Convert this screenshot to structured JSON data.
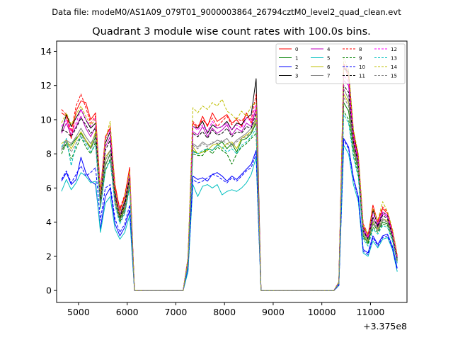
{
  "suptitle": "Data file: modeM0/AS1A09_079T01_9000003864_26794cztM0_level2_quad_clean.evt",
  "chart_data": {
    "type": "line",
    "title": "Quadrant 3 module wise count rates with 100.0s bins.",
    "xlabel": "",
    "ylabel": "",
    "x_offset_label": "+3.375e8",
    "xlim": [
      4550,
      11750
    ],
    "ylim": [
      -0.7,
      14.6
    ],
    "xticks": [
      5000,
      6000,
      7000,
      8000,
      9000,
      10000,
      11000
    ],
    "xtick_labels": [
      "5000",
      "6000",
      "7000",
      "8000",
      "9000",
      "10000",
      "11000"
    ],
    "yticks": [
      0,
      2,
      4,
      6,
      8,
      10,
      12,
      14
    ],
    "ytick_labels": [
      "0",
      "2",
      "4",
      "6",
      "8",
      "10",
      "12",
      "14"
    ],
    "grid": false,
    "legend_position": "top-right",
    "legend_columns": 4,
    "segments": [
      {
        "x_start": 4650,
        "x_step": 100,
        "count": 18
      },
      {
        "x_start": 7150,
        "x_step": 100,
        "count": 18
      },
      {
        "x_start": 10150,
        "x_step": 100,
        "count": 15
      }
    ],
    "zero_segments": [
      [
        6350,
        7150
      ],
      [
        9050,
        10050
      ]
    ],
    "series": [
      {
        "name": "0",
        "color": "#ff0000",
        "dash": "solid",
        "values": [
          10.4,
          10.2,
          8.9,
          10.5,
          11.1,
          11.0,
          10.0,
          10.4,
          5.8,
          9.0,
          9.5,
          6.2,
          4.7,
          5.5,
          7.2,
          0,
          0,
          0,
          0,
          1.8,
          9.8,
          9.5,
          10.2,
          9.6,
          10.4,
          9.9,
          10.1,
          10.3,
          9.8,
          10.0,
          9.6,
          10.4,
          9.8,
          10.6,
          0,
          0,
          0,
          0,
          0.5,
          13.2,
          12.5,
          9.0,
          7.8,
          3.8,
          3.2,
          5.0,
          4.0,
          4.8,
          4.5,
          3.5,
          2.0,
          2.3,
          2.2
        ]
      },
      {
        "name": "1",
        "color": "#008000",
        "dash": "solid",
        "values": [
          8.2,
          8.6,
          8.5,
          8.9,
          9.2,
          8.8,
          8.3,
          9.0,
          5.2,
          7.3,
          8.0,
          5.5,
          4.2,
          4.8,
          6.5,
          0,
          0,
          0,
          0,
          1.6,
          8.2,
          8.0,
          8.1,
          8.3,
          8.2,
          8.5,
          8.7,
          8.3,
          8.6,
          8.1,
          8.8,
          8.9,
          9.2,
          9.8,
          0,
          0,
          0,
          0,
          0.4,
          11.0,
          10.5,
          8.3,
          7.0,
          3.2,
          2.8,
          3.9,
          3.5,
          4.0,
          3.9,
          3.2,
          1.7,
          1.9,
          2.0
        ]
      },
      {
        "name": "2",
        "color": "#0000ff",
        "dash": "solid",
        "values": [
          6.4,
          6.9,
          6.2,
          6.5,
          7.8,
          6.9,
          6.4,
          6.2,
          3.6,
          5.5,
          6.0,
          3.9,
          3.2,
          3.7,
          4.7,
          0,
          0,
          0,
          0,
          1.2,
          6.7,
          6.5,
          6.6,
          6.4,
          6.8,
          6.9,
          6.7,
          6.4,
          6.7,
          6.5,
          6.8,
          7.1,
          7.4,
          8.2,
          0,
          0,
          0,
          0,
          0.3,
          8.9,
          8.4,
          6.6,
          5.5,
          2.4,
          2.2,
          3.2,
          2.7,
          3.2,
          3.3,
          2.6,
          1.3,
          1.4,
          1.6
        ]
      },
      {
        "name": "3",
        "color": "#000000",
        "dash": "solid",
        "values": [
          9.3,
          10.3,
          9.6,
          10.1,
          10.6,
          10.0,
          9.5,
          9.8,
          5.5,
          8.6,
          9.3,
          5.8,
          4.4,
          5.2,
          6.8,
          0,
          0,
          0,
          0,
          1.9,
          9.6,
          9.5,
          9.9,
          9.2,
          9.7,
          9.5,
          9.6,
          9.9,
          9.4,
          9.8,
          9.7,
          10.1,
          10.3,
          12.4,
          0,
          0,
          0,
          0,
          0.5,
          13.0,
          12.8,
          9.3,
          7.8,
          3.7,
          3.0,
          4.7,
          3.8,
          4.6,
          4.4,
          3.3,
          1.9,
          2.1,
          2.1
        ]
      },
      {
        "name": "4",
        "color": "#bf00bf",
        "dash": "solid",
        "values": [
          9.2,
          9.8,
          9.1,
          9.6,
          10.2,
          9.5,
          9.0,
          9.6,
          5.3,
          8.4,
          9.0,
          5.6,
          4.4,
          5.0,
          6.7,
          0,
          0,
          0,
          0,
          1.7,
          9.3,
          9.1,
          9.6,
          9.0,
          9.5,
          9.2,
          9.4,
          9.7,
          9.1,
          9.5,
          9.3,
          9.8,
          9.6,
          10.7,
          0,
          0,
          0,
          0,
          0.5,
          12.3,
          12.0,
          8.8,
          7.5,
          3.5,
          3.1,
          4.3,
          3.7,
          4.5,
          4.3,
          3.3,
          1.8,
          2.0,
          2.1
        ]
      },
      {
        "name": "5",
        "color": "#00bfbf",
        "dash": "solid",
        "values": [
          5.8,
          6.5,
          5.9,
          6.3,
          6.9,
          6.7,
          6.3,
          6.4,
          3.4,
          5.1,
          5.5,
          3.6,
          3.0,
          3.4,
          4.4,
          0,
          0,
          0,
          0,
          1.1,
          6.2,
          5.5,
          6.1,
          6.2,
          6.0,
          6.2,
          5.6,
          5.8,
          5.9,
          5.8,
          6.0,
          6.3,
          6.8,
          7.8,
          0,
          0,
          0,
          0,
          0.3,
          8.5,
          8.0,
          6.2,
          5.2,
          2.2,
          2.0,
          2.9,
          2.5,
          3.0,
          3.1,
          2.4,
          1.1,
          1.3,
          1.3
        ]
      },
      {
        "name": "6",
        "color": "#bfbf00",
        "dash": "solid",
        "values": [
          8.6,
          8.8,
          8.3,
          8.8,
          9.3,
          8.8,
          8.4,
          9.3,
          5.4,
          7.8,
          8.2,
          5.4,
          4.3,
          4.9,
          6.6,
          0,
          0,
          0,
          0,
          1.6,
          8.4,
          8.0,
          8.1,
          8.2,
          8.5,
          8.6,
          8.3,
          8.6,
          8.7,
          8.3,
          8.9,
          9.1,
          9.3,
          10.0,
          0,
          0,
          0,
          0,
          0.4,
          11.5,
          11.0,
          8.5,
          7.2,
          3.3,
          2.9,
          4.0,
          3.6,
          4.2,
          4.1,
          3.2,
          1.8,
          1.9,
          2.0
        ]
      },
      {
        "name": "7",
        "color": "#808080",
        "dash": "solid",
        "values": [
          8.3,
          8.8,
          8.6,
          9.0,
          9.5,
          9.0,
          8.6,
          9.1,
          5.3,
          7.6,
          8.2,
          5.2,
          4.1,
          4.7,
          6.4,
          0,
          0,
          0,
          0,
          1.6,
          8.6,
          8.4,
          8.7,
          8.5,
          8.6,
          8.8,
          8.7,
          8.9,
          8.5,
          8.8,
          9.0,
          9.2,
          9.5,
          10.1,
          0,
          0,
          0,
          0,
          0.4,
          11.8,
          11.2,
          8.6,
          7.3,
          3.4,
          3.0,
          4.1,
          3.5,
          4.2,
          4.0,
          3.1,
          1.8,
          1.9,
          2.0
        ]
      },
      {
        "name": "8",
        "color": "#ff0000",
        "dash": "dashed",
        "values": [
          10.6,
          10.3,
          9.3,
          10.8,
          11.5,
          10.7,
          9.8,
          10.2,
          5.7,
          8.8,
          9.6,
          6.0,
          4.8,
          5.6,
          7.1,
          0,
          0,
          0,
          0,
          1.9,
          9.9,
          9.6,
          10.0,
          9.7,
          10.1,
          9.6,
          9.9,
          10.2,
          9.7,
          10.1,
          9.9,
          10.3,
          10.0,
          11.5,
          0,
          0,
          0,
          0,
          0.5,
          13.3,
          12.7,
          9.2,
          7.9,
          3.9,
          3.3,
          4.8,
          4.1,
          4.9,
          4.6,
          3.6,
          2.1,
          2.4,
          2.9
        ]
      },
      {
        "name": "9",
        "color": "#008000",
        "dash": "dashed",
        "values": [
          8.0,
          8.6,
          7.7,
          8.3,
          9.0,
          8.4,
          8.0,
          8.7,
          4.9,
          7.0,
          7.7,
          5.1,
          4.0,
          4.6,
          6.1,
          0,
          0,
          0,
          0,
          1.5,
          8.0,
          7.9,
          7.9,
          8.3,
          8.0,
          8.4,
          8.2,
          8.0,
          7.4,
          8.0,
          8.4,
          8.6,
          8.9,
          9.2,
          0,
          0,
          0,
          0,
          0.4,
          10.5,
          10.0,
          8.0,
          6.8,
          3.1,
          2.7,
          3.7,
          3.4,
          3.9,
          3.8,
          3.0,
          1.7,
          1.8,
          1.9
        ]
      },
      {
        "name": "10",
        "color": "#0000ff",
        "dash": "dashed",
        "values": [
          6.5,
          7.0,
          6.3,
          6.8,
          7.3,
          6.7,
          6.9,
          7.2,
          4.1,
          6.0,
          6.2,
          4.2,
          3.4,
          3.9,
          5.0,
          0,
          0,
          0,
          0,
          1.3,
          6.5,
          6.3,
          6.4,
          6.6,
          6.8,
          6.7,
          6.5,
          6.3,
          6.6,
          6.4,
          6.7,
          7.0,
          7.2,
          8.0,
          0,
          0,
          0,
          0,
          0.3,
          8.8,
          8.3,
          6.5,
          5.4,
          2.3,
          2.1,
          3.1,
          2.6,
          3.1,
          3.2,
          2.5,
          1.2,
          1.4,
          1.5
        ]
      },
      {
        "name": "11",
        "color": "#000000",
        "dash": "dashed",
        "values": [
          9.4,
          9.3,
          9.0,
          9.5,
          10.1,
          9.7,
          9.2,
          9.5,
          5.2,
          8.2,
          8.8,
          5.5,
          4.3,
          5.0,
          6.6,
          0,
          0,
          0,
          0,
          1.7,
          9.2,
          9.0,
          9.3,
          8.9,
          9.4,
          9.1,
          9.2,
          9.5,
          9.0,
          9.3,
          9.2,
          9.6,
          9.5,
          10.4,
          0,
          0,
          0,
          0,
          0.5,
          12.0,
          11.6,
          8.7,
          7.4,
          3.5,
          3.0,
          4.3,
          3.7,
          4.4,
          4.2,
          3.2,
          1.8,
          2.0,
          2.0
        ]
      },
      {
        "name": "12",
        "color": "#ff00ff",
        "dash": "dashed",
        "values": [
          9.6,
          10.0,
          9.3,
          9.8,
          10.6,
          10.0,
          9.6,
          10.1,
          5.6,
          8.9,
          9.4,
          5.9,
          4.6,
          5.3,
          6.9,
          0,
          0,
          0,
          0,
          1.8,
          9.6,
          9.4,
          9.7,
          9.3,
          9.9,
          9.5,
          9.6,
          9.8,
          9.4,
          9.7,
          9.5,
          10.1,
          9.9,
          11.0,
          0,
          0,
          0,
          0,
          0.5,
          12.6,
          12.2,
          9.0,
          7.6,
          3.6,
          3.1,
          4.5,
          3.9,
          4.6,
          4.4,
          3.4,
          1.9,
          2.1,
          2.5
        ]
      },
      {
        "name": "13",
        "color": "#00bfbf",
        "dash": "dashed",
        "values": [
          8.4,
          8.9,
          7.3,
          8.6,
          9.0,
          8.6,
          8.1,
          8.5,
          4.8,
          7.0,
          7.6,
          5.0,
          3.9,
          4.5,
          6.0,
          0,
          0,
          0,
          0,
          1.5,
          8.1,
          8.0,
          8.2,
          8.3,
          8.2,
          8.5,
          8.4,
          8.1,
          8.3,
          8.0,
          8.5,
          8.7,
          9.0,
          9.5,
          0,
          0,
          0,
          0,
          0.4,
          10.3,
          9.8,
          7.8,
          6.6,
          3.0,
          2.6,
          3.6,
          3.3,
          3.8,
          3.7,
          2.9,
          1.6,
          1.7,
          1.8
        ]
      },
      {
        "name": "14",
        "color": "#bfbf00",
        "dash": "dashed",
        "values": [
          9.8,
          10.4,
          9.7,
          10.3,
          10.8,
          10.2,
          9.7,
          10.0,
          5.6,
          8.8,
          9.9,
          5.9,
          4.5,
          5.4,
          7.0,
          0,
          0,
          0,
          0,
          1.9,
          10.7,
          10.4,
          10.8,
          10.6,
          11.0,
          10.8,
          11.2,
          10.5,
          10.3,
          10.0,
          10.5,
          10.2,
          10.8,
          11.0,
          0,
          0,
          0,
          0,
          0.5,
          13.6,
          12.9,
          9.4,
          8.0,
          3.8,
          3.3,
          4.8,
          4.1,
          5.2,
          4.6,
          3.6,
          2.1,
          2.3,
          2.5
        ]
      },
      {
        "name": "15",
        "color": "#808080",
        "dash": "dashed",
        "values": [
          8.2,
          8.7,
          8.1,
          8.6,
          9.1,
          8.7,
          8.3,
          8.8,
          5.0,
          7.4,
          7.9,
          5.2,
          4.1,
          4.7,
          6.3,
          0,
          0,
          0,
          0,
          1.6,
          8.5,
          8.3,
          8.6,
          8.4,
          8.7,
          8.6,
          8.8,
          8.6,
          8.4,
          8.7,
          8.9,
          9.0,
          9.3,
          9.9,
          0,
          0,
          0,
          0,
          0.4,
          11.3,
          10.8,
          8.4,
          7.1,
          3.3,
          2.9,
          3.9,
          3.5,
          4.1,
          4.0,
          3.1,
          1.7,
          1.9,
          2.0
        ]
      }
    ]
  }
}
